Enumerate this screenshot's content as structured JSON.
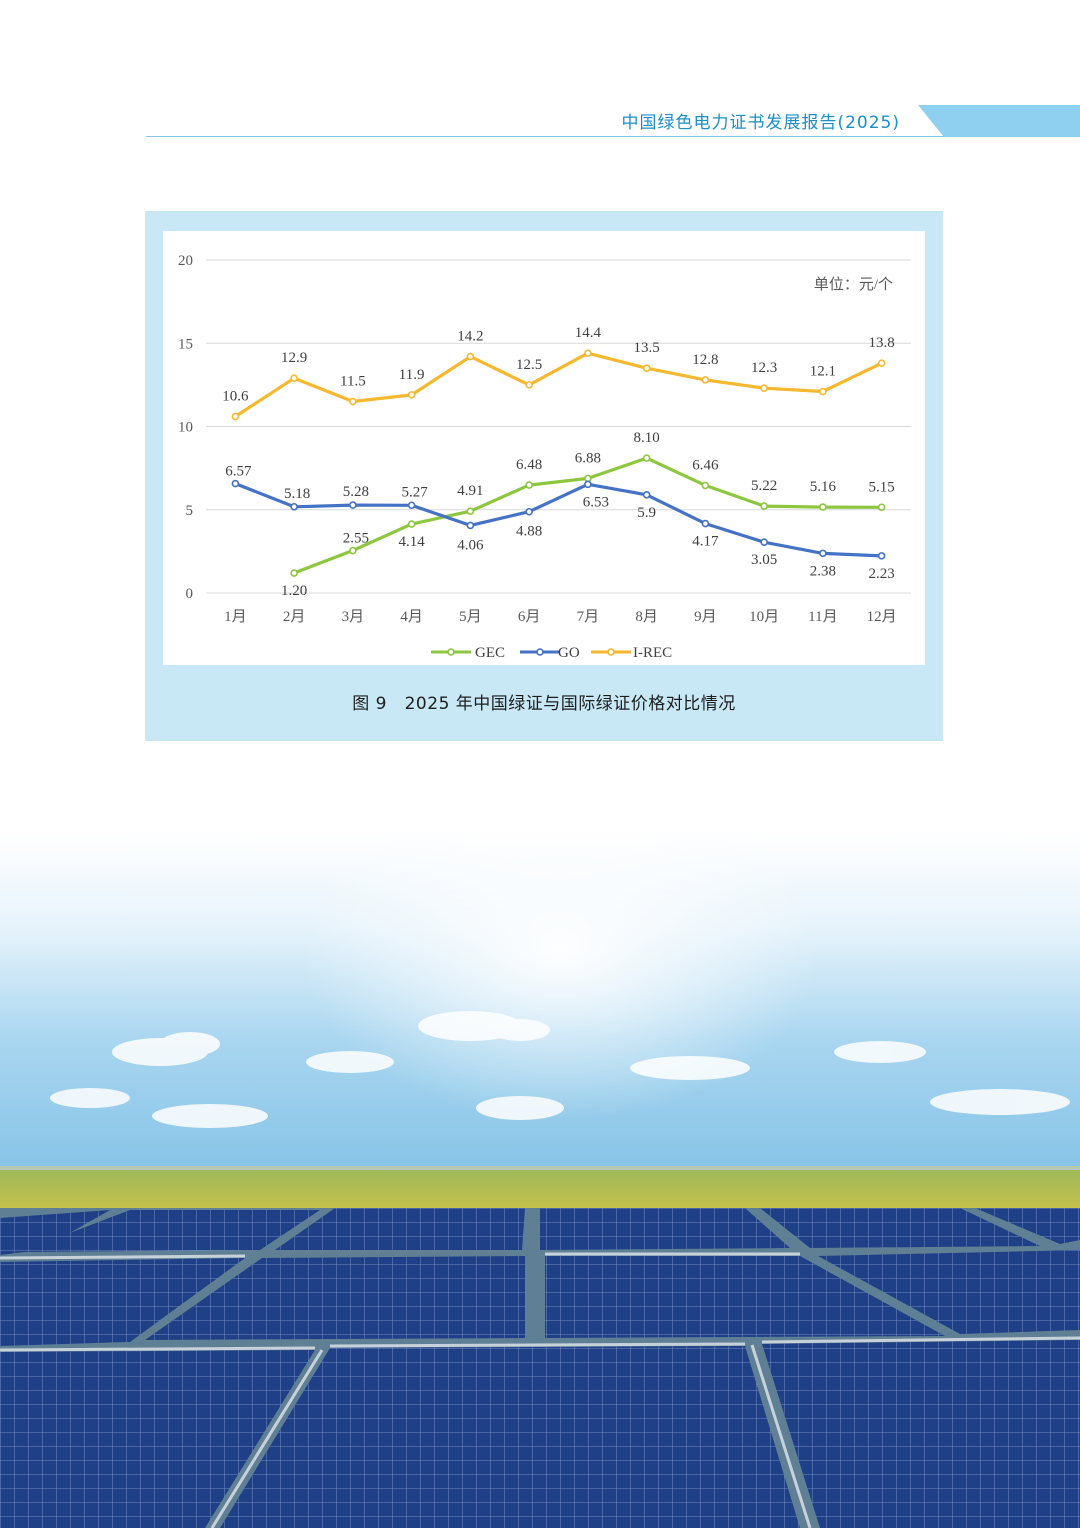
{
  "header": {
    "title": "中国绿色电力证书发展报告(2025)"
  },
  "figure": {
    "caption": "图 9   2025 年中国绿证与国际绿证价格对比情况"
  },
  "colors": {
    "GEC": "#8dc63f",
    "GO": "#4472c4",
    "I-REC": "#f5b82e",
    "accent": "#1a8fc9"
  },
  "chart_data": {
    "type": "line",
    "unit_label": "单位：元/个",
    "categories": [
      "1月",
      "2月",
      "3月",
      "4月",
      "5月",
      "6月",
      "7月",
      "8月",
      "9月",
      "10月",
      "11月",
      "12月"
    ],
    "yticks": [
      "0",
      "5",
      "10",
      "15",
      "20"
    ],
    "ylim": [
      0,
      20
    ],
    "grid": true,
    "legend_position": "bottom",
    "series": [
      {
        "name": "GEC",
        "values": [
          null,
          1.2,
          2.55,
          4.14,
          4.91,
          6.48,
          6.88,
          8.1,
          6.46,
          5.22,
          5.16,
          5.15
        ],
        "labels": [
          "",
          "1.20",
          "2.55",
          "4.14",
          "4.91",
          "6.48",
          "6.88",
          "8.10",
          "6.46",
          "5.22",
          "5.16",
          "5.15"
        ]
      },
      {
        "name": "GO",
        "values": [
          6.57,
          5.18,
          5.28,
          5.27,
          4.06,
          4.88,
          6.53,
          5.9,
          4.17,
          3.05,
          2.38,
          2.23
        ],
        "labels": [
          "6.57",
          "5.18",
          "5.28",
          "5.27",
          "4.06",
          "4.88",
          "6.53",
          "5.9",
          "4.17",
          "3.05",
          "2.38",
          "2.23"
        ]
      },
      {
        "name": "I-REC",
        "values": [
          10.6,
          12.9,
          11.5,
          11.9,
          14.2,
          12.5,
          14.4,
          13.5,
          12.8,
          12.3,
          12.1,
          13.8
        ],
        "labels": [
          "10.6",
          "12.9",
          "11.5",
          "11.9",
          "14.2",
          "12.5",
          "14.4",
          "13.5",
          "12.8",
          "12.3",
          "12.1",
          "13.8"
        ]
      }
    ]
  }
}
